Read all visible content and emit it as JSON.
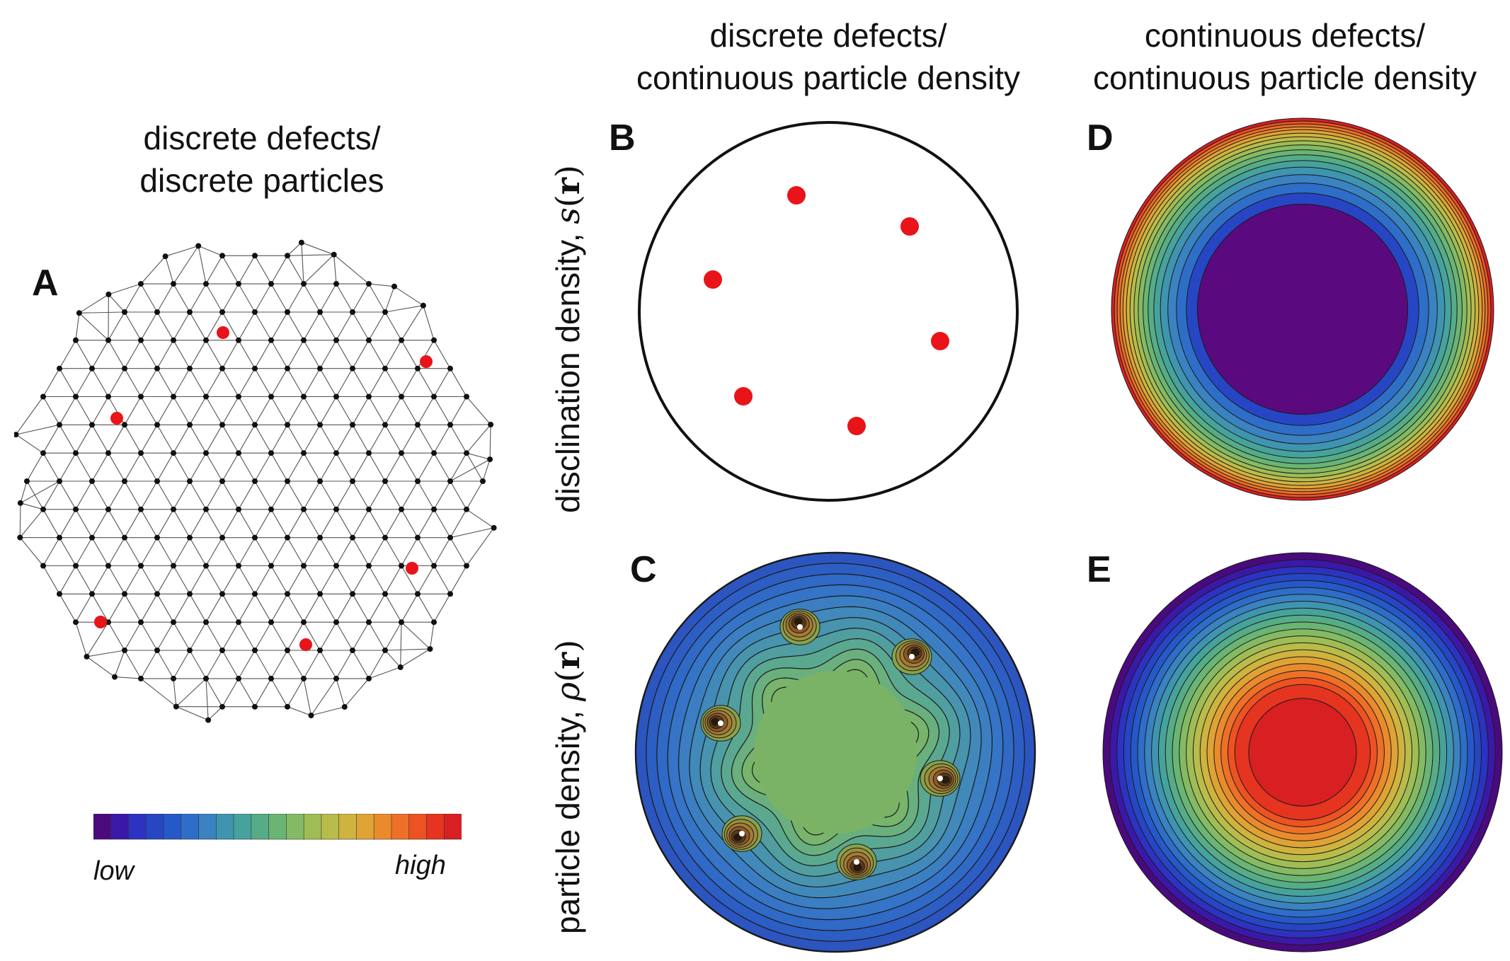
{
  "titles": {
    "col_a": {
      "line1": "discrete defects/",
      "line2": "discrete particles"
    },
    "col_bc": {
      "line1": "discrete defects/",
      "line2": "continuous particle density"
    },
    "col_de": {
      "line1": "continuous defects/",
      "line2": "continuous particle density"
    }
  },
  "panel_labels": {
    "a": "A",
    "b": "B",
    "c": "C",
    "d": "D",
    "e": "E"
  },
  "row_labels": {
    "top": {
      "text": "disclination density, ",
      "symbol": "s",
      "open": "(",
      "vector": "r",
      "close": ")"
    },
    "bottom": {
      "text": "particle density, ",
      "symbol": "ρ",
      "open": "(",
      "vector": "r",
      "close": ")"
    }
  },
  "colorbar": {
    "low_label": "low",
    "high_label": "high",
    "colors": [
      "#4a0a7e",
      "#3b18a8",
      "#2c33c0",
      "#2646c4",
      "#2659c8",
      "#2e6ec8",
      "#3a82c0",
      "#3f94b0",
      "#46a39c",
      "#55ac86",
      "#6ab474",
      "#84ba63",
      "#a0bd55",
      "#b9bc4a",
      "#cfb33f",
      "#dfa235",
      "#e98b2d",
      "#ee7027",
      "#ec5222",
      "#e5341f",
      "#d81f22"
    ]
  },
  "colors": {
    "defect": "#e8141a",
    "node": "#111111",
    "edge": "#555555"
  }
}
